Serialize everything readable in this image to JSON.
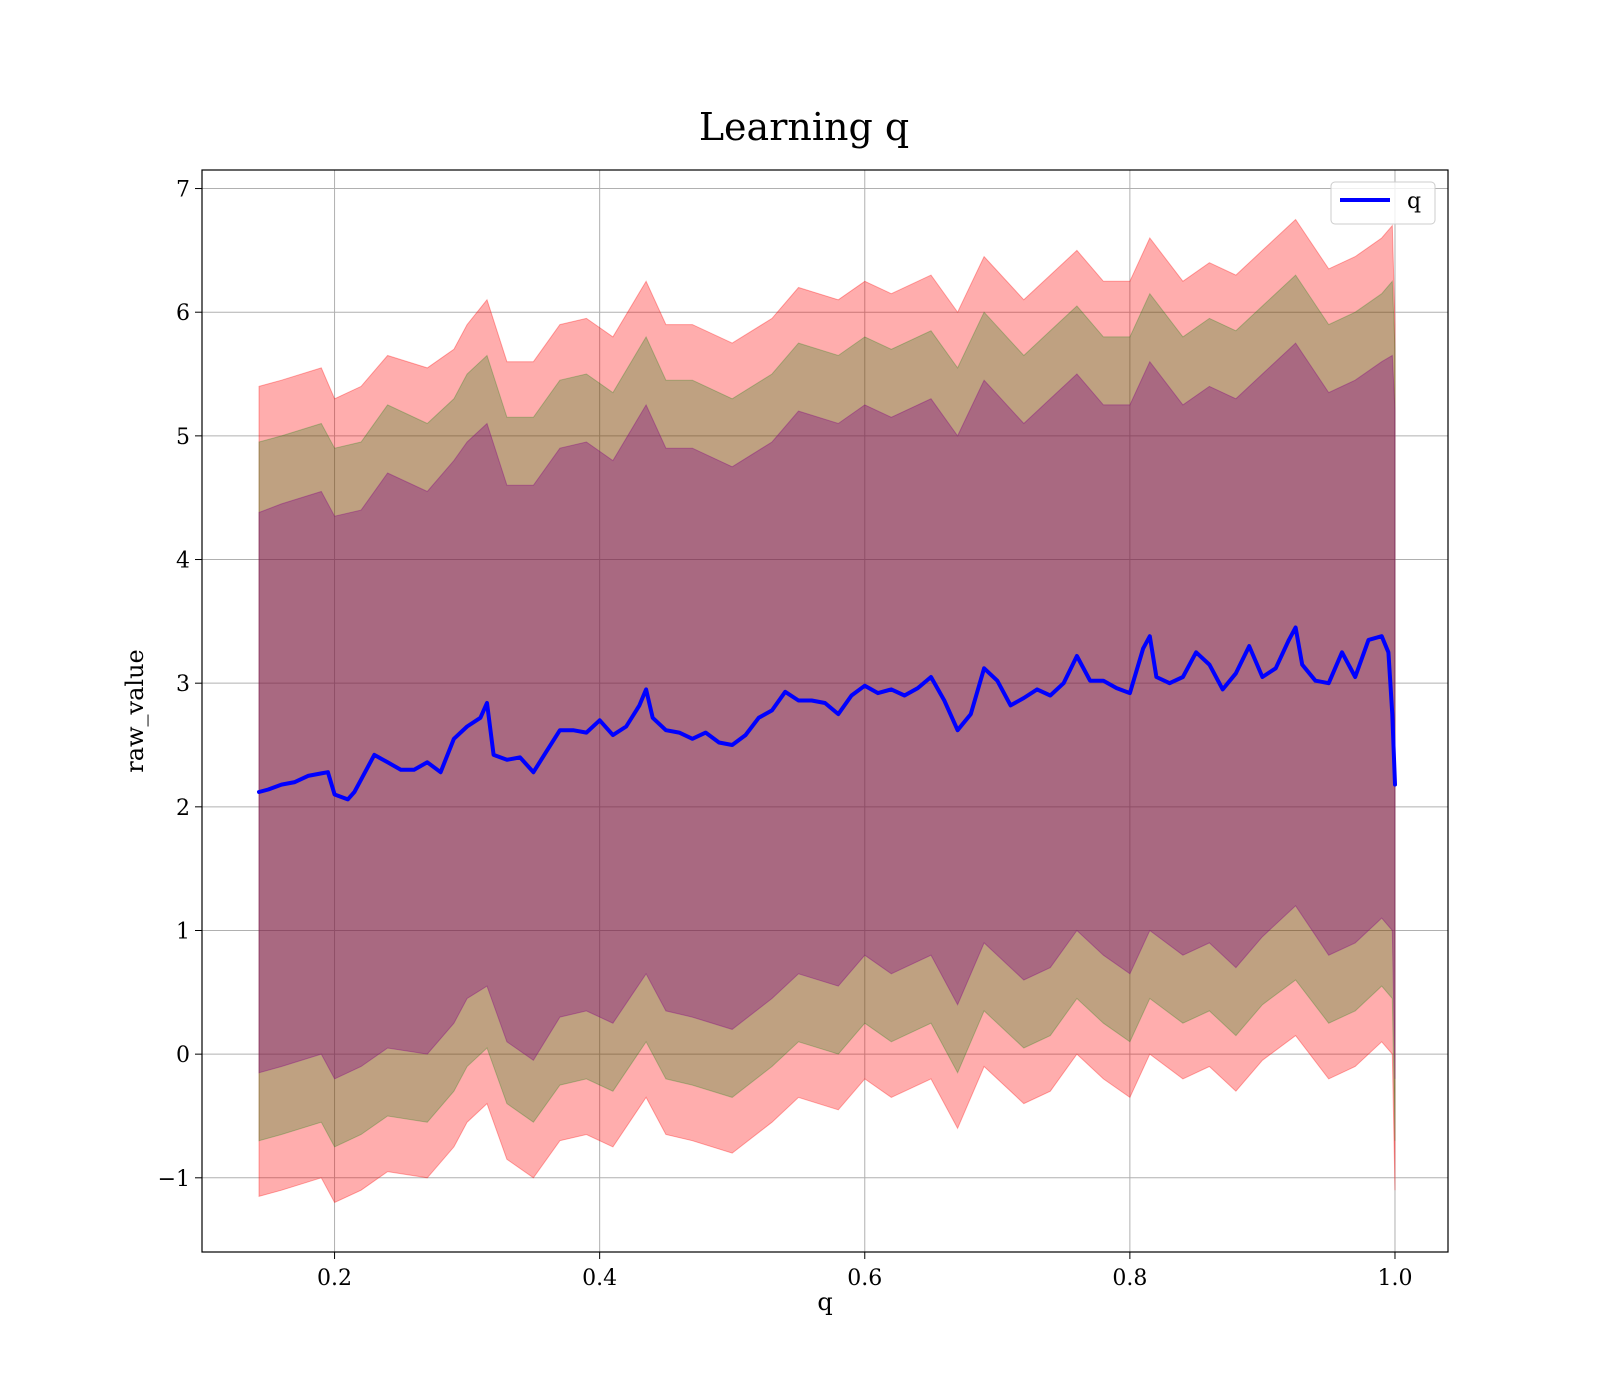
{
  "chart_data": {
    "type": "line",
    "title": "Learning q",
    "xlabel": "q",
    "ylabel": "raw_value",
    "xlim": [
      0.1,
      1.04
    ],
    "ylim": [
      -1.6,
      7.15
    ],
    "xticks": [
      0.2,
      0.4,
      0.6,
      0.8,
      1.0
    ],
    "xtick_labels": [
      "0.2",
      "0.4",
      "0.6",
      "0.8",
      "1.0"
    ],
    "yticks": [
      -1,
      0,
      1,
      2,
      3,
      4,
      5,
      6,
      7
    ],
    "ytick_labels": [
      "−1",
      "0",
      "1",
      "2",
      "3",
      "4",
      "5",
      "6",
      "7"
    ],
    "grid": true,
    "legend": {
      "position": "top-right",
      "entries": [
        "q"
      ]
    },
    "series": [
      {
        "name": "q",
        "color": "#0000ff",
        "x": [
          0.143,
          0.15,
          0.16,
          0.17,
          0.18,
          0.19,
          0.195,
          0.2,
          0.21,
          0.215,
          0.22,
          0.23,
          0.24,
          0.25,
          0.26,
          0.27,
          0.28,
          0.29,
          0.3,
          0.31,
          0.315,
          0.32,
          0.33,
          0.34,
          0.35,
          0.36,
          0.37,
          0.38,
          0.39,
          0.4,
          0.41,
          0.42,
          0.43,
          0.435,
          0.44,
          0.45,
          0.46,
          0.47,
          0.48,
          0.49,
          0.5,
          0.51,
          0.52,
          0.53,
          0.54,
          0.55,
          0.56,
          0.57,
          0.58,
          0.59,
          0.6,
          0.61,
          0.62,
          0.63,
          0.64,
          0.65,
          0.66,
          0.67,
          0.68,
          0.69,
          0.7,
          0.71,
          0.72,
          0.73,
          0.74,
          0.75,
          0.76,
          0.77,
          0.78,
          0.79,
          0.8,
          0.81,
          0.815,
          0.82,
          0.83,
          0.84,
          0.85,
          0.86,
          0.87,
          0.88,
          0.89,
          0.9,
          0.91,
          0.92,
          0.925,
          0.93,
          0.94,
          0.95,
          0.96,
          0.97,
          0.98,
          0.99,
          0.995,
          0.998,
          1.0
        ],
        "y": [
          2.12,
          2.14,
          2.18,
          2.2,
          2.25,
          2.27,
          2.28,
          2.1,
          2.06,
          2.12,
          2.22,
          2.42,
          2.36,
          2.3,
          2.3,
          2.36,
          2.28,
          2.55,
          2.65,
          2.72,
          2.84,
          2.42,
          2.38,
          2.4,
          2.28,
          2.45,
          2.62,
          2.62,
          2.6,
          2.7,
          2.58,
          2.65,
          2.82,
          2.95,
          2.72,
          2.62,
          2.6,
          2.55,
          2.6,
          2.52,
          2.5,
          2.58,
          2.72,
          2.78,
          2.93,
          2.86,
          2.86,
          2.84,
          2.75,
          2.9,
          2.98,
          2.92,
          2.95,
          2.9,
          2.96,
          3.05,
          2.86,
          2.62,
          2.75,
          3.12,
          3.02,
          2.82,
          2.88,
          2.95,
          2.9,
          3.0,
          3.22,
          3.02,
          3.02,
          2.96,
          2.92,
          3.28,
          3.38,
          3.05,
          3.0,
          3.05,
          3.25,
          3.15,
          2.95,
          3.08,
          3.3,
          3.05,
          3.12,
          3.35,
          3.45,
          3.15,
          3.02,
          3.0,
          3.25,
          3.05,
          3.35,
          3.38,
          3.25,
          2.75,
          2.18
        ]
      }
    ],
    "bands": [
      {
        "color": "#ff0000",
        "opacity": 0.32,
        "x": [
          0.143,
          0.16,
          0.19,
          0.2,
          0.22,
          0.24,
          0.27,
          0.29,
          0.3,
          0.315,
          0.33,
          0.35,
          0.37,
          0.39,
          0.41,
          0.435,
          0.45,
          0.47,
          0.5,
          0.53,
          0.55,
          0.58,
          0.6,
          0.62,
          0.65,
          0.67,
          0.69,
          0.72,
          0.74,
          0.76,
          0.78,
          0.8,
          0.815,
          0.84,
          0.86,
          0.88,
          0.9,
          0.925,
          0.95,
          0.97,
          0.99,
          0.998,
          1.0
        ],
        "upper": [
          5.4,
          5.45,
          5.55,
          5.3,
          5.4,
          5.65,
          5.55,
          5.7,
          5.9,
          6.1,
          5.6,
          5.6,
          5.9,
          5.95,
          5.8,
          6.25,
          5.9,
          5.9,
          5.75,
          5.95,
          6.2,
          6.1,
          6.25,
          6.15,
          6.3,
          6.0,
          6.45,
          6.1,
          6.3,
          6.5,
          6.25,
          6.25,
          6.6,
          6.25,
          6.4,
          6.3,
          6.5,
          6.75,
          6.35,
          6.45,
          6.6,
          6.7,
          5.9
        ],
        "lower": [
          -1.15,
          -1.1,
          -1.0,
          -1.2,
          -1.1,
          -0.95,
          -1.0,
          -0.75,
          -0.55,
          -0.4,
          -0.85,
          -1.0,
          -0.7,
          -0.65,
          -0.75,
          -0.35,
          -0.65,
          -0.7,
          -0.8,
          -0.55,
          -0.35,
          -0.45,
          -0.2,
          -0.35,
          -0.2,
          -0.6,
          -0.1,
          -0.4,
          -0.3,
          0.0,
          -0.2,
          -0.35,
          0.0,
          -0.2,
          -0.1,
          -0.3,
          -0.05,
          0.15,
          -0.2,
          -0.1,
          0.1,
          0.0,
          -1.1
        ]
      },
      {
        "color": "#008000",
        "opacity": 0.25,
        "x": [
          0.143,
          0.16,
          0.19,
          0.2,
          0.22,
          0.24,
          0.27,
          0.29,
          0.3,
          0.315,
          0.33,
          0.35,
          0.37,
          0.39,
          0.41,
          0.435,
          0.45,
          0.47,
          0.5,
          0.53,
          0.55,
          0.58,
          0.6,
          0.62,
          0.65,
          0.67,
          0.69,
          0.72,
          0.74,
          0.76,
          0.78,
          0.8,
          0.815,
          0.84,
          0.86,
          0.88,
          0.9,
          0.925,
          0.95,
          0.97,
          0.99,
          0.998,
          1.0
        ],
        "upper": [
          4.95,
          5.0,
          5.1,
          4.9,
          4.95,
          5.25,
          5.1,
          5.3,
          5.5,
          5.65,
          5.15,
          5.15,
          5.45,
          5.5,
          5.35,
          5.8,
          5.45,
          5.45,
          5.3,
          5.5,
          5.75,
          5.65,
          5.8,
          5.7,
          5.85,
          5.55,
          6.0,
          5.65,
          5.85,
          6.05,
          5.8,
          5.8,
          6.15,
          5.8,
          5.95,
          5.85,
          6.05,
          6.3,
          5.9,
          6.0,
          6.15,
          6.25,
          5.7
        ],
        "lower": [
          -0.7,
          -0.65,
          -0.55,
          -0.75,
          -0.65,
          -0.5,
          -0.55,
          -0.3,
          -0.1,
          0.05,
          -0.4,
          -0.55,
          -0.25,
          -0.2,
          -0.3,
          0.1,
          -0.2,
          -0.25,
          -0.35,
          -0.1,
          0.1,
          0.0,
          0.25,
          0.1,
          0.25,
          -0.15,
          0.35,
          0.05,
          0.15,
          0.45,
          0.25,
          0.1,
          0.45,
          0.25,
          0.35,
          0.15,
          0.4,
          0.6,
          0.25,
          0.35,
          0.55,
          0.45,
          -0.7
        ]
      },
      {
        "color": "#800080",
        "opacity": 0.35,
        "x": [
          0.143,
          0.16,
          0.19,
          0.2,
          0.22,
          0.24,
          0.27,
          0.29,
          0.3,
          0.315,
          0.33,
          0.35,
          0.37,
          0.39,
          0.41,
          0.435,
          0.45,
          0.47,
          0.5,
          0.53,
          0.55,
          0.58,
          0.6,
          0.62,
          0.65,
          0.67,
          0.69,
          0.72,
          0.74,
          0.76,
          0.78,
          0.8,
          0.815,
          0.84,
          0.86,
          0.88,
          0.9,
          0.925,
          0.95,
          0.97,
          0.99,
          0.998,
          1.0
        ],
        "upper": [
          4.38,
          4.45,
          4.55,
          4.35,
          4.4,
          4.7,
          4.55,
          4.8,
          4.95,
          5.1,
          4.6,
          4.6,
          4.9,
          4.95,
          4.8,
          5.25,
          4.9,
          4.9,
          4.75,
          4.95,
          5.2,
          5.1,
          5.25,
          5.15,
          5.3,
          5.0,
          5.45,
          5.1,
          5.3,
          5.5,
          5.25,
          5.25,
          5.6,
          5.25,
          5.4,
          5.3,
          5.5,
          5.75,
          5.35,
          5.45,
          5.6,
          5.65,
          5.2
        ],
        "lower": [
          -0.15,
          -0.1,
          0.0,
          -0.2,
          -0.1,
          0.05,
          0.0,
          0.25,
          0.45,
          0.55,
          0.1,
          -0.05,
          0.3,
          0.35,
          0.25,
          0.65,
          0.35,
          0.3,
          0.2,
          0.45,
          0.65,
          0.55,
          0.8,
          0.65,
          0.8,
          0.4,
          0.9,
          0.6,
          0.7,
          1.0,
          0.8,
          0.65,
          1.0,
          0.8,
          0.9,
          0.7,
          0.95,
          1.2,
          0.8,
          0.9,
          1.1,
          1.0,
          -0.2
        ]
      }
    ]
  }
}
